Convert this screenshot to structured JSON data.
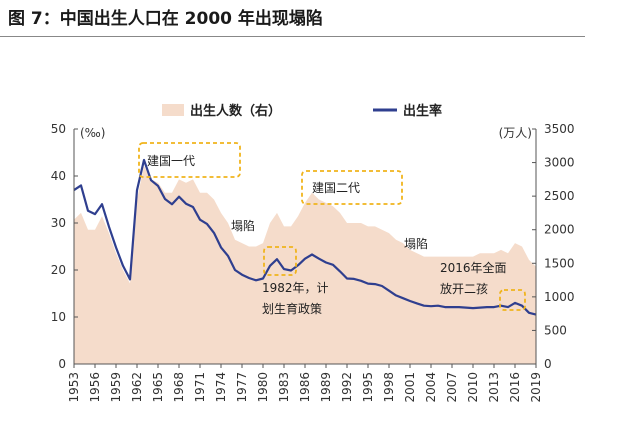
{
  "figure": {
    "title": "图 7：中国出生人口在 2000 年出现塌陷"
  },
  "chart_data": {
    "type": "line+area",
    "title": "",
    "legend": [
      {
        "name": "出生人数（右）",
        "kind": "area",
        "color": "#f5dccb"
      },
      {
        "name": "出生率",
        "kind": "line",
        "color": "#2f3f8f"
      }
    ],
    "legend_position": "top-center",
    "left_axis": {
      "unit": "(‰)",
      "range": [
        0,
        50
      ],
      "ticks": [
        0,
        10,
        20,
        30,
        40,
        50
      ]
    },
    "right_axis": {
      "unit": "(万人)",
      "range": [
        0,
        3500
      ],
      "ticks": [
        0,
        500,
        1000,
        1500,
        2000,
        2500,
        3000,
        3500
      ]
    },
    "x_range": [
      1953,
      2019
    ],
    "x_ticks": [
      1953,
      1956,
      1959,
      1962,
      1965,
      1968,
      1971,
      1974,
      1977,
      1980,
      1983,
      1986,
      1989,
      1992,
      1995,
      1998,
      2001,
      2004,
      2007,
      2010,
      2013,
      2016,
      2019
    ],
    "grid": false,
    "birth_rate": {
      "name": "出生率",
      "x": [
        1953,
        1954,
        1955,
        1956,
        1957,
        1958,
        1959,
        1960,
        1961,
        1962,
        1963,
        1964,
        1965,
        1966,
        1967,
        1968,
        1969,
        1970,
        1971,
        1972,
        1973,
        1974,
        1975,
        1976,
        1977,
        1978,
        1979,
        1980,
        1981,
        1982,
        1983,
        1984,
        1985,
        1986,
        1987,
        1988,
        1989,
        1990,
        1991,
        1992,
        1993,
        1994,
        1995,
        1996,
        1997,
        1998,
        1999,
        2000,
        2001,
        2002,
        2003,
        2004,
        2005,
        2006,
        2007,
        2008,
        2009,
        2010,
        2011,
        2012,
        2013,
        2014,
        2015,
        2016,
        2017,
        2018,
        2019
      ],
      "y": [
        37.0,
        38.0,
        32.6,
        31.9,
        34.0,
        29.2,
        24.8,
        20.9,
        18.0,
        37.0,
        43.4,
        39.1,
        37.9,
        35.1,
        34.0,
        35.6,
        34.1,
        33.4,
        30.7,
        29.8,
        27.9,
        24.8,
        23.0,
        20.0,
        19.0,
        18.3,
        17.8,
        18.2,
        20.9,
        22.3,
        20.2,
        19.9,
        21.0,
        22.4,
        23.3,
        22.4,
        21.6,
        21.1,
        19.7,
        18.2,
        18.1,
        17.7,
        17.1,
        17.0,
        16.6,
        15.6,
        14.6,
        14.0,
        13.4,
        12.9,
        12.4,
        12.3,
        12.4,
        12.1,
        12.1,
        12.1,
        12.0,
        11.9,
        12.0,
        12.1,
        12.1,
        12.4,
        12.1,
        13.0,
        12.4,
        10.9,
        10.5
      ]
    },
    "births": {
      "name": "出生人数（右）",
      "x": [
        1953,
        1954,
        1955,
        1956,
        1957,
        1958,
        1959,
        1960,
        1961,
        1962,
        1963,
        1964,
        1965,
        1966,
        1967,
        1968,
        1969,
        1970,
        1971,
        1972,
        1973,
        1974,
        1975,
        1976,
        1977,
        1978,
        1979,
        1980,
        1981,
        1982,
        1983,
        1984,
        1985,
        1986,
        1987,
        1988,
        1989,
        1990,
        1991,
        1992,
        1993,
        1994,
        1995,
        1996,
        1997,
        1998,
        1999,
        2000,
        2001,
        2002,
        2003,
        2004,
        2005,
        2006,
        2007,
        2008,
        2009,
        2010,
        2011,
        2012,
        2013,
        2014,
        2015,
        2016,
        2017,
        2018,
        2019
      ],
      "y": [
        2150,
        2250,
        2000,
        2000,
        2200,
        1950,
        1650,
        1400,
        1200,
        2450,
        2950,
        2750,
        2700,
        2550,
        2550,
        2750,
        2700,
        2750,
        2550,
        2550,
        2450,
        2250,
        2100,
        1850,
        1800,
        1750,
        1750,
        1800,
        2100,
        2250,
        2050,
        2050,
        2200,
        2400,
        2550,
        2450,
        2400,
        2350,
        2250,
        2100,
        2100,
        2100,
        2050,
        2050,
        2000,
        1950,
        1850,
        1800,
        1700,
        1650,
        1600,
        1600,
        1600,
        1600,
        1600,
        1600,
        1600,
        1600,
        1650,
        1650,
        1650,
        1700,
        1650,
        1800,
        1750,
        1550,
        1450
      ]
    },
    "annotations": [
      {
        "text": "建国一代",
        "x": 1966,
        "y_right": 3000,
        "boxed": true
      },
      {
        "text": "建国二代",
        "x": 1990,
        "y_right": 2550,
        "boxed": true
      },
      {
        "text": "塌陷",
        "x": 1979,
        "y_left": 29
      },
      {
        "text": "塌陷",
        "x": 2003,
        "y_left": 25
      },
      {
        "text": "1982年，计",
        "x": 1984.5,
        "y_left": 16.5
      },
      {
        "text": "划生育政策",
        "x": 1984.5,
        "y_left": 12.5
      },
      {
        "text": "2016年全面",
        "x": 2012.5,
        "y_left": 20.5
      },
      {
        "text": "放开二孩",
        "x": 2012.5,
        "y_left": 16.5
      }
    ]
  }
}
